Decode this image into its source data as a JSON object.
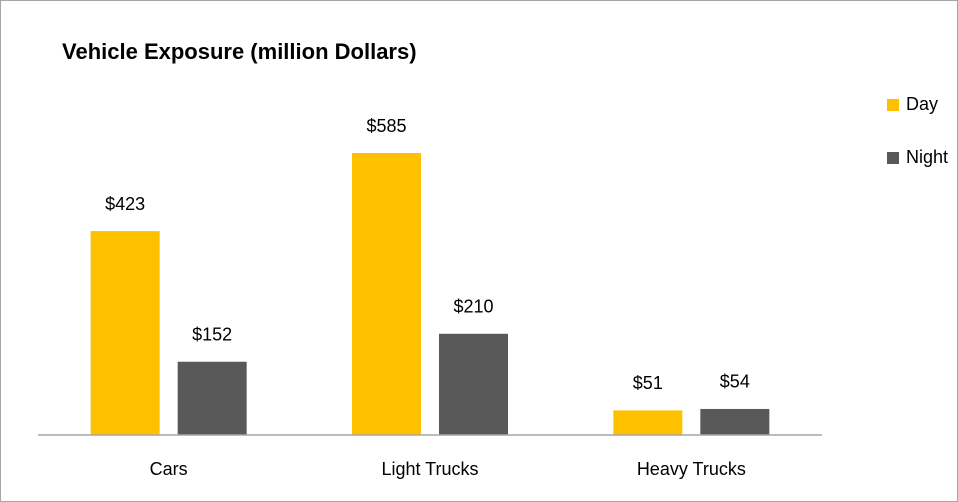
{
  "chart_data": {
    "type": "bar",
    "title": "Vehicle Exposure (million Dollars)",
    "categories": [
      "Cars",
      "Light Trucks",
      "Heavy Trucks"
    ],
    "series": [
      {
        "name": "Day",
        "color": "#FFC000",
        "values": [
          423,
          585,
          51
        ],
        "value_labels": [
          "$423",
          "$585",
          "$51"
        ]
      },
      {
        "name": "Night",
        "color": "#595959",
        "values": [
          152,
          210,
          54
        ],
        "value_labels": [
          "$152",
          "$210",
          "$54"
        ]
      }
    ],
    "legend": "right"
  }
}
